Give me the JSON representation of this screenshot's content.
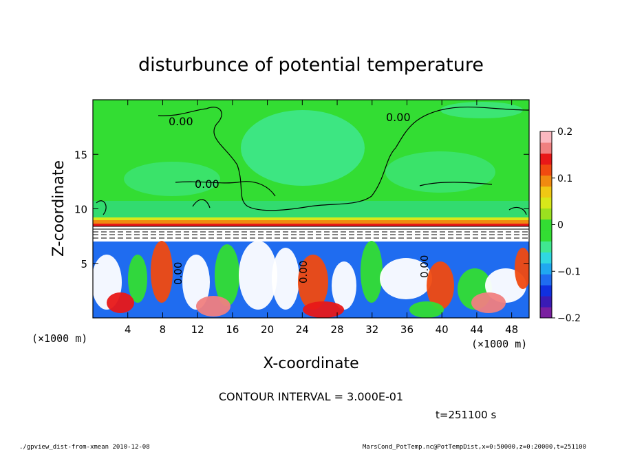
{
  "chart_data": {
    "type": "heatmap",
    "title": "disturbunce of potential temperature",
    "xlabel": "X-coordinate",
    "ylabel": "Z-coordinate",
    "x_unit_left": "(×1000 m)",
    "x_unit_right": "(×1000 m)",
    "xlim": [
      0,
      50
    ],
    "ylim": [
      0,
      20
    ],
    "x_ticks": [
      4,
      8,
      12,
      16,
      20,
      24,
      28,
      32,
      36,
      40,
      44,
      48
    ],
    "y_ticks": [
      5,
      10,
      15
    ],
    "colorbar": {
      "range": [
        -0.2,
        0.2
      ],
      "tick_values": [
        0.2,
        0.1,
        0,
        -0.1,
        -0.2
      ],
      "tick_labels": [
        "0.2",
        "0.1",
        "0",
        "−0.1",
        "−0.2"
      ],
      "colors": [
        "#7a1fa0",
        "#3a1bb5",
        "#1030e0",
        "#1f6cf0",
        "#20a8f0",
        "#30d8e0",
        "#40e890",
        "#33dd33",
        "#33dd33",
        "#9be11f",
        "#d8e81a",
        "#f0c814",
        "#f08a10",
        "#f04a10",
        "#e81818",
        "#f08080",
        "#fbb8c0"
      ]
    },
    "contour_label": "0.00",
    "contour_interval": "CONTOUR INTERVAL = 3.000E-01",
    "time": "t=251100 s"
  },
  "footer": {
    "left": "./gpview_dist-from-xmean   2010-12-08",
    "right": "MarsCond_PotTemp.nc@PotTempDist,x=0:50000,z=0:20000,t=251100"
  }
}
